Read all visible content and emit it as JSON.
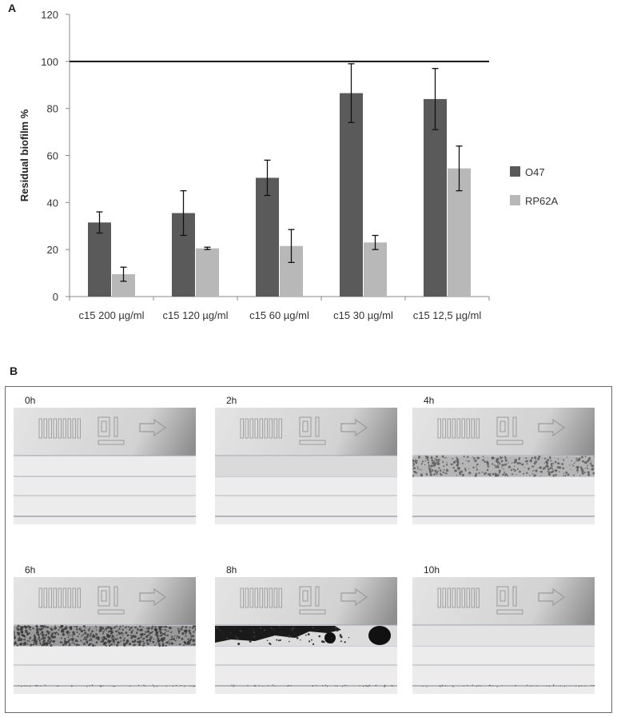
{
  "panels": {
    "a_label": "A",
    "b_label": "B"
  },
  "chart_data": {
    "type": "bar",
    "categories": [
      "c15 200 µg/ml",
      "c15 120 µg/ml",
      "c15 60 µg/ml",
      "c15 30 µg/ml",
      "c15 12,5 µg/ml"
    ],
    "series": [
      {
        "name": "O47",
        "color": "#5a5a5a",
        "values": [
          31.5,
          35.5,
          50.5,
          86.5,
          84.0
        ],
        "errors": [
          4.5,
          9.5,
          7.5,
          12.5,
          13.0
        ]
      },
      {
        "name": "RP62A",
        "color": "#b8b8b8",
        "values": [
          9.5,
          20.5,
          21.5,
          23.0,
          54.5
        ],
        "errors": [
          3.0,
          0.5,
          7.0,
          3.0,
          9.5
        ]
      }
    ],
    "reference_line": 100,
    "ylabel": "Residual biofilm %",
    "xlabel": "",
    "ylim": [
      0,
      120
    ],
    "yticks": [
      0,
      20,
      40,
      60,
      80,
      100,
      120
    ],
    "legend_position": "right",
    "grid": false
  },
  "timelapse": {
    "frames": [
      {
        "label": "0h"
      },
      {
        "label": "2h"
      },
      {
        "label": "4h"
      },
      {
        "label": "6h"
      },
      {
        "label": "8h"
      },
      {
        "label": "10h"
      }
    ]
  }
}
